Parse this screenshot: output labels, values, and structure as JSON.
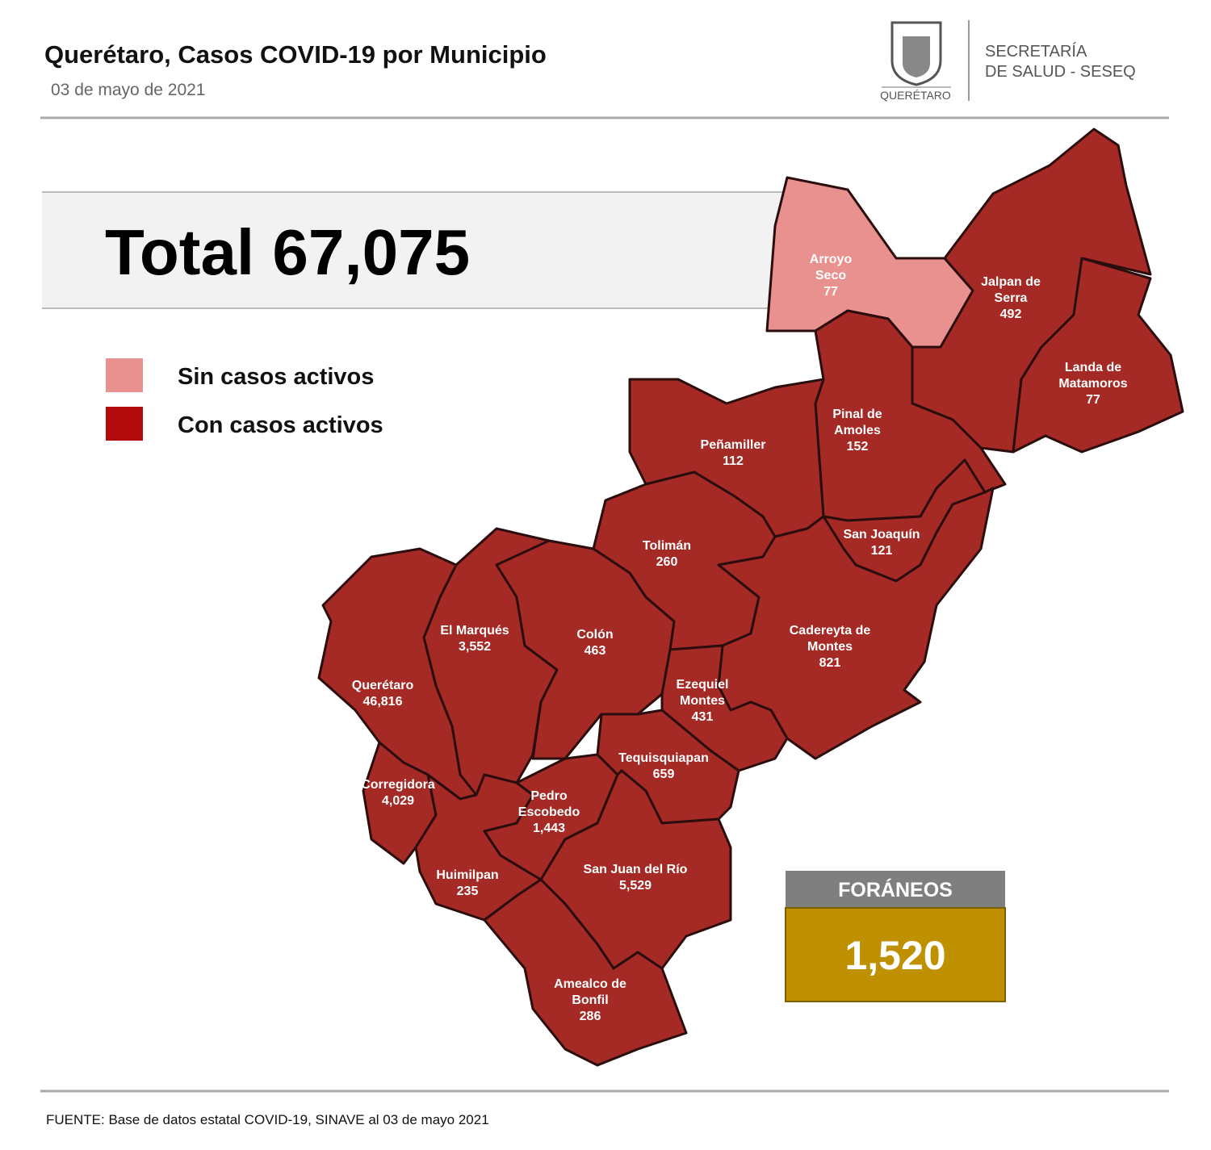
{
  "header": {
    "title": "Querétaro, Casos COVID-19 por Municipio",
    "date": "03 de mayo de 2021",
    "logo_text": "QUERÉTARO",
    "agency": [
      "SECRETARÍA",
      "DE SALUD - SESEQ"
    ]
  },
  "total": "Total 67,075",
  "legend": [
    {
      "label": "Sin casos activos",
      "color": "#e8918f"
    },
    {
      "label": "Con casos activos",
      "color": "#b00a0a"
    }
  ],
  "municipalities": [
    {
      "name": [
        "Arroyo",
        "Seco"
      ],
      "value": "77",
      "color": "#e8918f"
    },
    {
      "name": [
        "Jalpan de",
        "Serra"
      ],
      "value": "492",
      "color": "#a52a25"
    },
    {
      "name": [
        "Landa de",
        "Matamoros"
      ],
      "value": "77",
      "color": "#a52a25"
    },
    {
      "name": [
        "Pinal de",
        "Amoles"
      ],
      "value": "152",
      "color": "#a52a25"
    },
    {
      "name": [
        "Peñamiller"
      ],
      "value": "112",
      "color": "#a52a25"
    },
    {
      "name": [
        "Tolimán"
      ],
      "value": "260",
      "color": "#a52a25"
    },
    {
      "name": [
        "San Joaquín"
      ],
      "value": "121",
      "color": "#a52a25"
    },
    {
      "name": [
        "Cadereyta de",
        "Montes"
      ],
      "value": "821",
      "color": "#a52a25"
    },
    {
      "name": [
        "El  Marqués"
      ],
      "value": "3,552",
      "color": "#a52a25"
    },
    {
      "name": [
        "Colón"
      ],
      "value": "463",
      "color": "#a52a25"
    },
    {
      "name": [
        "Querétaro"
      ],
      "value": "46,816",
      "color": "#a52a25"
    },
    {
      "name": [
        "Corregidora"
      ],
      "value": "4,029",
      "color": "#a52a25"
    },
    {
      "name": [
        "Huimilpan"
      ],
      "value": "235",
      "color": "#a52a25"
    },
    {
      "name": [
        "Pedro",
        "Escobedo"
      ],
      "value": "1,443",
      "color": "#a52a25"
    },
    {
      "name": [
        "Ezequiel",
        "Montes"
      ],
      "value": "431",
      "color": "#a52a25"
    },
    {
      "name": [
        "Tequisquiapan"
      ],
      "value": "659",
      "color": "#a52a25"
    },
    {
      "name": [
        "San Juan del Río"
      ],
      "value": "5,529",
      "color": "#a52a25"
    },
    {
      "name": [
        "Amealco de",
        "Bonfil"
      ],
      "value": "286",
      "color": "#a52a25"
    }
  ],
  "foraneos": {
    "label": "FORÁNEOS",
    "value": "1,520"
  },
  "footer": "FUENTE:  Base de datos estatal COVID-19,  SINAVE  al 03 de mayo 2021"
}
